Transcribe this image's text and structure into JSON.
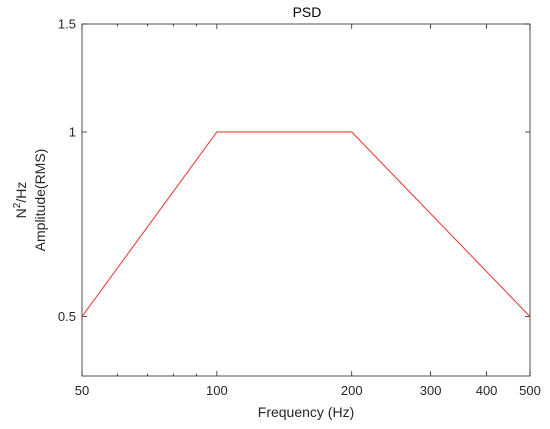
{
  "chart_data": {
    "type": "line",
    "title": "PSD",
    "xlabel": "Frequency (Hz)",
    "ylabel_line1_base": "N",
    "ylabel_line1_sup": "2",
    "ylabel_line1_rest": "/Hz",
    "ylabel_line2": "Amplitude(RMS)",
    "x_scale": "log",
    "y_scale": "log",
    "xlim": [
      50,
      500
    ],
    "ylim": [
      0.4,
      1.5
    ],
    "x_ticks": [
      50,
      100,
      200,
      300,
      400,
      500
    ],
    "x_tick_labels": [
      "50",
      "100",
      "200",
      "300",
      "400",
      "500"
    ],
    "y_ticks": [
      0.5,
      1,
      1.5
    ],
    "y_tick_labels": [
      "0.5",
      "1",
      "1.5"
    ],
    "grid": false,
    "box": true,
    "series": [
      {
        "color": "#e8453c",
        "x": [
          50,
          100,
          200,
          500
        ],
        "y": [
          0.5,
          1,
          1,
          0.5
        ]
      }
    ]
  }
}
